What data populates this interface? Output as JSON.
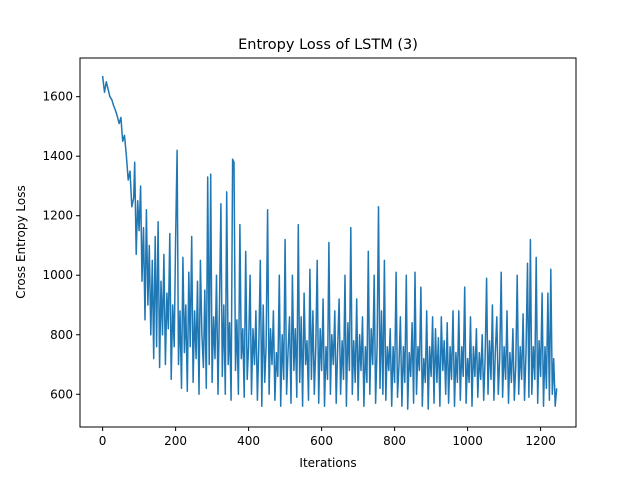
{
  "chart_data": {
    "type": "line",
    "title": "Entropy Loss of LSTM (3)",
    "xlabel": "Iterations",
    "ylabel": "Cross Entropy Loss",
    "xlim": [
      -62,
      1297
    ],
    "ylim": [
      490,
      1730
    ],
    "xticks": [
      "0",
      "200",
      "400",
      "600",
      "800",
      "1000",
      "1200"
    ],
    "yticks": [
      "600",
      "800",
      "1000",
      "1200",
      "1400",
      "1600"
    ],
    "grid": false,
    "legend": "none",
    "series": [
      {
        "color": "#1f77b4",
        "points": [
          [
            0,
            1670
          ],
          [
            5,
            1615
          ],
          [
            10,
            1650
          ],
          [
            15,
            1625
          ],
          [
            20,
            1600
          ],
          [
            25,
            1590
          ],
          [
            30,
            1570
          ],
          [
            35,
            1555
          ],
          [
            40,
            1535
          ],
          [
            45,
            1510
          ],
          [
            50,
            1530
          ],
          [
            55,
            1450
          ],
          [
            60,
            1470
          ],
          [
            65,
            1400
          ],
          [
            70,
            1320
          ],
          [
            75,
            1350
          ],
          [
            80,
            1230
          ],
          [
            85,
            1260
          ],
          [
            88,
            1380
          ],
          [
            92,
            1070
          ],
          [
            96,
            1250
          ],
          [
            100,
            1150
          ],
          [
            104,
            1300
          ],
          [
            108,
            980
          ],
          [
            112,
            1160
          ],
          [
            116,
            850
          ],
          [
            120,
            1220
          ],
          [
            124,
            900
          ],
          [
            128,
            1100
          ],
          [
            132,
            800
          ],
          [
            136,
            1050
          ],
          [
            140,
            720
          ],
          [
            144,
            1130
          ],
          [
            148,
            760
          ],
          [
            152,
            1180
          ],
          [
            156,
            690
          ],
          [
            160,
            980
          ],
          [
            164,
            800
          ],
          [
            168,
            1070
          ],
          [
            172,
            700
          ],
          [
            176,
            940
          ],
          [
            180,
            820
          ],
          [
            184,
            1140
          ],
          [
            188,
            650
          ],
          [
            192,
            900
          ],
          [
            196,
            760
          ],
          [
            200,
            1120
          ],
          [
            204,
            1420
          ],
          [
            208,
            700
          ],
          [
            212,
            880
          ],
          [
            216,
            620
          ],
          [
            220,
            1060
          ],
          [
            224,
            740
          ],
          [
            228,
            900
          ],
          [
            232,
            610
          ],
          [
            236,
            1010
          ],
          [
            240,
            760
          ],
          [
            244,
            1130
          ],
          [
            248,
            640
          ],
          [
            252,
            880
          ],
          [
            256,
            720
          ],
          [
            260,
            980
          ],
          [
            264,
            600
          ],
          [
            268,
            1050
          ],
          [
            272,
            800
          ],
          [
            276,
            690
          ],
          [
            280,
            950
          ],
          [
            284,
            620
          ],
          [
            288,
            1330
          ],
          [
            292,
            700
          ],
          [
            296,
            1340
          ],
          [
            300,
            640
          ],
          [
            304,
            860
          ],
          [
            308,
            720
          ],
          [
            312,
            1000
          ],
          [
            316,
            600
          ],
          [
            320,
            880
          ],
          [
            324,
            1240
          ],
          [
            328,
            660
          ],
          [
            332,
            900
          ],
          [
            336,
            600
          ],
          [
            340,
            1280
          ],
          [
            344,
            700
          ],
          [
            348,
            840
          ],
          [
            352,
            580
          ],
          [
            356,
            1390
          ],
          [
            360,
            1380
          ],
          [
            364,
            680
          ],
          [
            368,
            850
          ],
          [
            372,
            600
          ],
          [
            376,
            1170
          ],
          [
            380,
            720
          ],
          [
            384,
            820
          ],
          [
            388,
            590
          ],
          [
            392,
            1080
          ],
          [
            396,
            650
          ],
          [
            400,
            760
          ],
          [
            404,
            1000
          ],
          [
            408,
            600
          ],
          [
            412,
            820
          ],
          [
            416,
            700
          ],
          [
            420,
            880
          ],
          [
            424,
            580
          ],
          [
            428,
            760
          ],
          [
            432,
            1050
          ],
          [
            436,
            560
          ],
          [
            440,
            900
          ],
          [
            444,
            640
          ],
          [
            448,
            760
          ],
          [
            452,
            1220
          ],
          [
            456,
            600
          ],
          [
            460,
            820
          ],
          [
            464,
            700
          ],
          [
            468,
            880
          ],
          [
            472,
            580
          ],
          [
            476,
            740
          ],
          [
            480,
            660
          ],
          [
            484,
            1000
          ],
          [
            488,
            560
          ],
          [
            492,
            800
          ],
          [
            496,
            650
          ],
          [
            500,
            1120
          ],
          [
            504,
            600
          ],
          [
            508,
            740
          ],
          [
            512,
            860
          ],
          [
            516,
            570
          ],
          [
            520,
            1000
          ],
          [
            524,
            680
          ],
          [
            528,
            820
          ],
          [
            532,
            590
          ],
          [
            536,
            1170
          ],
          [
            540,
            640
          ],
          [
            544,
            860
          ],
          [
            548,
            560
          ],
          [
            552,
            940
          ],
          [
            556,
            700
          ],
          [
            560,
            780
          ],
          [
            564,
            580
          ],
          [
            568,
            1020
          ],
          [
            572,
            650
          ],
          [
            576,
            880
          ],
          [
            580,
            600
          ],
          [
            584,
            760
          ],
          [
            588,
            1050
          ],
          [
            592,
            570
          ],
          [
            596,
            820
          ],
          [
            600,
            680
          ],
          [
            604,
            920
          ],
          [
            608,
            560
          ],
          [
            612,
            760
          ],
          [
            616,
            650
          ],
          [
            620,
            1110
          ],
          [
            624,
            600
          ],
          [
            628,
            800
          ],
          [
            632,
            700
          ],
          [
            636,
            880
          ],
          [
            640,
            570
          ],
          [
            644,
            760
          ],
          [
            648,
            920
          ],
          [
            652,
            600
          ],
          [
            656,
            780
          ],
          [
            660,
            650
          ],
          [
            664,
            1000
          ],
          [
            668,
            560
          ],
          [
            672,
            840
          ],
          [
            676,
            680
          ],
          [
            680,
            1160
          ],
          [
            684,
            600
          ],
          [
            688,
            780
          ],
          [
            692,
            640
          ],
          [
            696,
            920
          ],
          [
            700,
            580
          ],
          [
            704,
            800
          ],
          [
            708,
            680
          ],
          [
            712,
            860
          ],
          [
            716,
            560
          ],
          [
            720,
            760
          ],
          [
            724,
            640
          ],
          [
            728,
            1080
          ],
          [
            732,
            600
          ],
          [
            736,
            820
          ],
          [
            740,
            700
          ],
          [
            744,
            1000
          ],
          [
            748,
            570
          ],
          [
            752,
            760
          ],
          [
            756,
            1230
          ],
          [
            760,
            620
          ],
          [
            764,
            880
          ],
          [
            768,
            600
          ],
          [
            772,
            1050
          ],
          [
            776,
            580
          ],
          [
            780,
            760
          ],
          [
            784,
            680
          ],
          [
            788,
            820
          ],
          [
            792,
            560
          ],
          [
            796,
            760
          ],
          [
            800,
            640
          ],
          [
            804,
            1010
          ],
          [
            808,
            590
          ],
          [
            812,
            700
          ],
          [
            816,
            860
          ],
          [
            820,
            560
          ],
          [
            824,
            760
          ],
          [
            828,
            640
          ],
          [
            832,
            1000
          ],
          [
            836,
            550
          ],
          [
            840,
            740
          ],
          [
            844,
            660
          ],
          [
            848,
            840
          ],
          [
            852,
            570
          ],
          [
            856,
            1010
          ],
          [
            860,
            600
          ],
          [
            864,
            760
          ],
          [
            868,
            680
          ],
          [
            872,
            960
          ],
          [
            876,
            560
          ],
          [
            880,
            720
          ],
          [
            884,
            640
          ],
          [
            888,
            880
          ],
          [
            892,
            550
          ],
          [
            896,
            760
          ],
          [
            900,
            660
          ],
          [
            904,
            860
          ],
          [
            908,
            570
          ],
          [
            912,
            820
          ],
          [
            916,
            640
          ],
          [
            920,
            790
          ],
          [
            924,
            560
          ],
          [
            928,
            860
          ],
          [
            932,
            680
          ],
          [
            936,
            780
          ],
          [
            940,
            600
          ],
          [
            944,
            840
          ],
          [
            948,
            570
          ],
          [
            952,
            760
          ],
          [
            956,
            650
          ],
          [
            960,
            880
          ],
          [
            964,
            560
          ],
          [
            968,
            740
          ],
          [
            972,
            640
          ],
          [
            976,
            880
          ],
          [
            980,
            580
          ],
          [
            984,
            760
          ],
          [
            988,
            660
          ],
          [
            992,
            960
          ],
          [
            996,
            570
          ],
          [
            1000,
            720
          ],
          [
            1004,
            640
          ],
          [
            1008,
            860
          ],
          [
            1012,
            560
          ],
          [
            1016,
            760
          ],
          [
            1020,
            660
          ],
          [
            1024,
            820
          ],
          [
            1028,
            590
          ],
          [
            1032,
            740
          ],
          [
            1036,
            650
          ],
          [
            1040,
            800
          ],
          [
            1044,
            580
          ],
          [
            1048,
            720
          ],
          [
            1052,
            990
          ],
          [
            1056,
            600
          ],
          [
            1060,
            780
          ],
          [
            1064,
            650
          ],
          [
            1068,
            900
          ],
          [
            1072,
            580
          ],
          [
            1076,
            740
          ],
          [
            1080,
            860
          ],
          [
            1084,
            600
          ],
          [
            1088,
            720
          ],
          [
            1092,
            1010
          ],
          [
            1096,
            590
          ],
          [
            1100,
            760
          ],
          [
            1104,
            650
          ],
          [
            1108,
            880
          ],
          [
            1112,
            570
          ],
          [
            1116,
            740
          ],
          [
            1120,
            640
          ],
          [
            1124,
            820
          ],
          [
            1128,
            580
          ],
          [
            1132,
            700
          ],
          [
            1136,
            1000
          ],
          [
            1140,
            600
          ],
          [
            1144,
            760
          ],
          [
            1148,
            650
          ],
          [
            1152,
            870
          ],
          [
            1156,
            580
          ],
          [
            1160,
            740
          ],
          [
            1164,
            1040
          ],
          [
            1168,
            590
          ],
          [
            1172,
            1120
          ],
          [
            1176,
            600
          ],
          [
            1180,
            760
          ],
          [
            1184,
            650
          ],
          [
            1188,
            1060
          ],
          [
            1192,
            570
          ],
          [
            1196,
            780
          ],
          [
            1200,
            660
          ],
          [
            1204,
            940
          ],
          [
            1208,
            560
          ],
          [
            1212,
            760
          ],
          [
            1216,
            620
          ],
          [
            1220,
            940
          ],
          [
            1224,
            580
          ],
          [
            1228,
            1020
          ],
          [
            1232,
            600
          ],
          [
            1236,
            720
          ],
          [
            1240,
            560
          ],
          [
            1244,
            620
          ]
        ]
      }
    ]
  }
}
